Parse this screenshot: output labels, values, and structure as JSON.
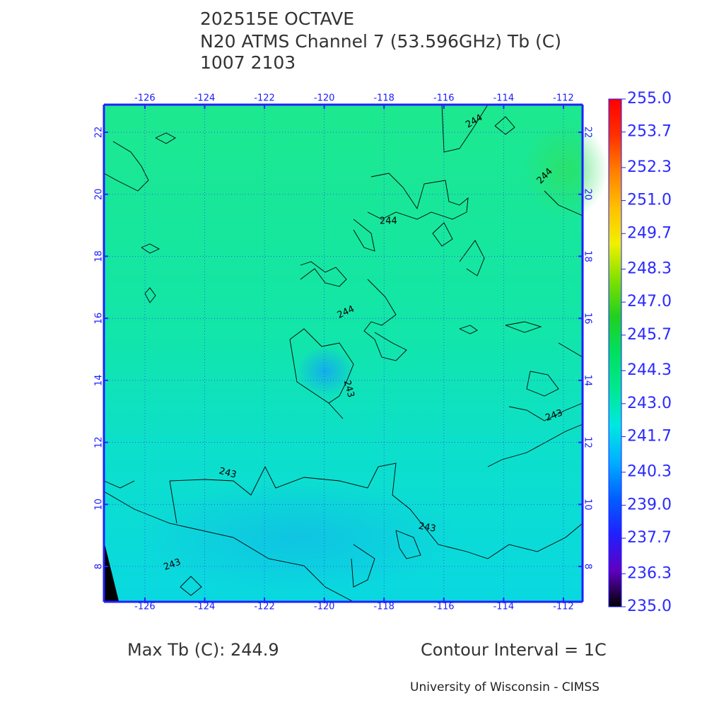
{
  "header": {
    "title": "202515E OCTAVE",
    "subtitle": "N20 ATMS Channel 7 (53.596GHz) Tb (C)",
    "datetime": "1007 2103"
  },
  "map": {
    "xlim": [
      -127.37,
      -111.36
    ],
    "ylim": [
      6.86,
      22.89
    ],
    "xticks": [
      -126,
      -124,
      -122,
      -120,
      -118,
      -116,
      -114,
      -112
    ],
    "yticks": [
      8,
      10,
      12,
      14,
      16,
      18,
      20,
      22
    ],
    "grid": true,
    "contour_labels": [
      "244",
      "244",
      "244",
      "244",
      "243",
      "243",
      "243",
      "243",
      "243"
    ]
  },
  "colorbar": {
    "lim": [
      235,
      255
    ],
    "ticks": [
      {
        "value": 255,
        "label": "255.0"
      },
      {
        "value": 253.7,
        "label": "253.7"
      },
      {
        "value": 252.3,
        "label": "252.3"
      },
      {
        "value": 251,
        "label": "251.0"
      },
      {
        "value": 249.7,
        "label": "249.7"
      },
      {
        "value": 248.3,
        "label": "248.3"
      },
      {
        "value": 247,
        "label": "247.0"
      },
      {
        "value": 245.7,
        "label": "245.7"
      },
      {
        "value": 244.3,
        "label": "244.3"
      },
      {
        "value": 243,
        "label": "243.0"
      },
      {
        "value": 241.7,
        "label": "241.7"
      },
      {
        "value": 240.3,
        "label": "240.3"
      },
      {
        "value": 239,
        "label": "239.0"
      },
      {
        "value": 237.7,
        "label": "237.7"
      },
      {
        "value": 236.3,
        "label": "236.3"
      },
      {
        "value": 235,
        "label": "235.0"
      }
    ],
    "colors": [
      "#000000",
      "#6000c0",
      "#2020ff",
      "#0060ff",
      "#00b0ff",
      "#00e8e0",
      "#00e890",
      "#00e060",
      "#20d020",
      "#80e000",
      "#f0f000",
      "#ffc000",
      "#ff8000",
      "#ff3000",
      "#ff0000"
    ]
  },
  "footer": {
    "max_tb": "Max Tb (C): 244.9",
    "contour_interval": "Contour Interval = 1C",
    "credit": "University of Wisconsin - CIMSS"
  }
}
